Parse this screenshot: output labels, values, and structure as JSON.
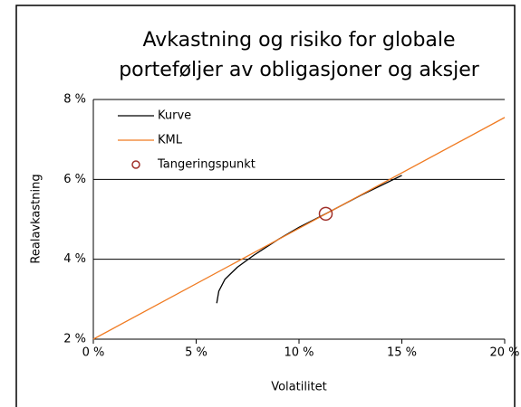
{
  "chart_data": {
    "type": "line",
    "title": [
      "Avkastning og risiko for globale",
      "porteføljer av obligasjoner og aksjer"
    ],
    "x_label": "Volatilitet",
    "y_label": "Realavkastning",
    "xlim": [
      0,
      20
    ],
    "ylim": [
      2,
      8
    ],
    "xticks": [
      {
        "value": 0,
        "label": "0 %"
      },
      {
        "value": 5,
        "label": "5 %"
      },
      {
        "value": 10,
        "label": "10 %"
      },
      {
        "value": 15,
        "label": "15 %"
      },
      {
        "value": 20,
        "label": "20 %"
      }
    ],
    "yticks": [
      {
        "value": 2,
        "label": "2 %"
      },
      {
        "value": 4,
        "label": "4 %"
      },
      {
        "value": 6,
        "label": "6 %"
      },
      {
        "value": 8,
        "label": "8 %"
      }
    ],
    "grid": true,
    "legend": "upper left",
    "series": [
      {
        "name": "Kurve",
        "color": "#000000",
        "kind": "line",
        "x": [
          6.0,
          6.1,
          6.4,
          7.0,
          7.8,
          9.0,
          10.0,
          11.3,
          13.0,
          15.0
        ],
        "values": [
          2.9,
          3.2,
          3.5,
          3.8,
          4.1,
          4.5,
          4.8,
          5.14,
          5.6,
          6.1
        ]
      },
      {
        "name": "KML",
        "color": "#f07b22",
        "kind": "line",
        "x": [
          0,
          20
        ],
        "values": [
          2,
          7.55
        ]
      },
      {
        "name": "Tangeringspunkt",
        "color": "#a0302a",
        "kind": "marker",
        "x": [
          11.3
        ],
        "values": [
          5.14
        ]
      }
    ]
  }
}
